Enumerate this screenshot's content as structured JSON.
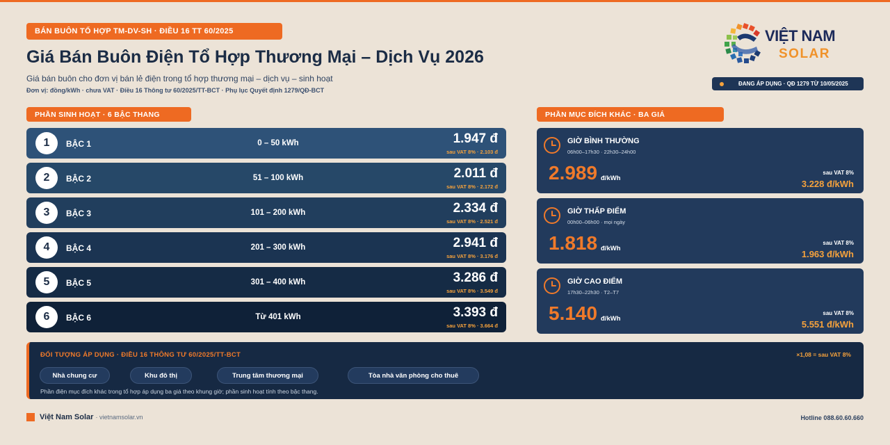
{
  "header": {
    "tag": "BÁN BUÔN TỔ HỢP TM-DV-SH · ĐIỀU 16 TT 60/2025",
    "title": "Giá Bán Buôn Điện Tổ Hợp Thương Mại – Dịch Vụ 2026",
    "subtitle": "Giá bán buôn cho đơn vị bán lẻ điện trong tổ hợp thương mại – dịch vụ – sinh hoạt",
    "units": "Đơn vị: đồng/kWh · chưa VAT · Điều 16 Thông tư 60/2025/TT-BCT · Phụ lục Quyết định 1279/QĐ-BCT"
  },
  "logo": {
    "line1": "VIỆT NAM",
    "line2": "SOLAR",
    "icon": "sun-grid-logo-icon"
  },
  "apply_badge": "ĐANG ÁP DỤNG · QĐ 1279 TỪ 10/05/2025",
  "residential": {
    "heading": "PHẦN SINH HOẠT · 6 BẬC THANG",
    "tiers": [
      {
        "num": "1",
        "label": "BẬC 1",
        "range": "0 – 50 kWh",
        "price": "1.947 đ",
        "vat": "sau VAT 8% · 2.103 đ",
        "bg": "#2e5278"
      },
      {
        "num": "2",
        "label": "BẬC 2",
        "range": "51 – 100 kWh",
        "price": "2.011 đ",
        "vat": "sau VAT 8% · 2.172 đ",
        "bg": "#264868"
      },
      {
        "num": "3",
        "label": "BẬC 3",
        "range": "101 – 200 kWh",
        "price": "2.334 đ",
        "vat": "sau VAT 8% · 2.521 đ",
        "bg": "#213e5d"
      },
      {
        "num": "4",
        "label": "BẬC 4",
        "range": "201 – 300 kWh",
        "price": "2.941 đ",
        "vat": "sau VAT 8% · 3.176 đ",
        "bg": "#1b3452"
      },
      {
        "num": "5",
        "label": "BẬC 5",
        "range": "301 – 400 kWh",
        "price": "3.286 đ",
        "vat": "sau VAT 8% · 3.549 đ",
        "bg": "#152b45"
      },
      {
        "num": "6",
        "label": "BẬC 6",
        "range": "Từ 401 kWh",
        "price": "3.393 đ",
        "vat": "sau VAT 8% · 3.664 đ",
        "bg": "#0f2138"
      }
    ]
  },
  "other": {
    "heading": "PHẦN MỤC ĐÍCH KHÁC · BA GIÁ",
    "cards": [
      {
        "title": "GIỜ BÌNH THƯỜNG",
        "hours": "06h00–17h30 · 22h30–24h00",
        "price": "2.989",
        "unit": "đ/kWh",
        "vat_label": "sau VAT 8%",
        "vat_price": "3.228 đ/kWh"
      },
      {
        "title": "GIỜ THẤP ĐIỂM",
        "hours": "00h00–06h00 · mọi ngày",
        "price": "1.818",
        "unit": "đ/kWh",
        "vat_label": "sau VAT 8%",
        "vat_price": "1.963 đ/kWh"
      },
      {
        "title": "GIỜ CAO ĐIỂM",
        "hours": "17h30–22h30 · T2–T7",
        "price": "5.140",
        "unit": "đ/kWh",
        "vat_label": "sau VAT 8%",
        "vat_price": "5.551 đ/kWh"
      }
    ]
  },
  "audience": {
    "title": "ĐỐI TƯỢNG ÁP DỤNG · ĐIỀU 16 THÔNG TƯ 60/2025/TT-BCT",
    "note": "×1,08 = sau VAT 8%",
    "chips": [
      "Nhà chung cư",
      "Khu đô thị",
      "Trung tâm thương mại",
      "Tòa nhà văn phòng cho thuê"
    ],
    "footnote": "Phần điện mục đích khác trong tổ hợp áp dụng ba giá theo khung giờ; phần sinh hoạt tính theo bậc thang."
  },
  "footer": {
    "brand": "Việt Nam Solar",
    "site": "· vietnamsolar.vn",
    "hotline": "Hotline 088.60.60.660"
  },
  "colors": {
    "accent": "#ee6a22",
    "navy": "#1b2c45",
    "amber": "#f6a23c"
  }
}
